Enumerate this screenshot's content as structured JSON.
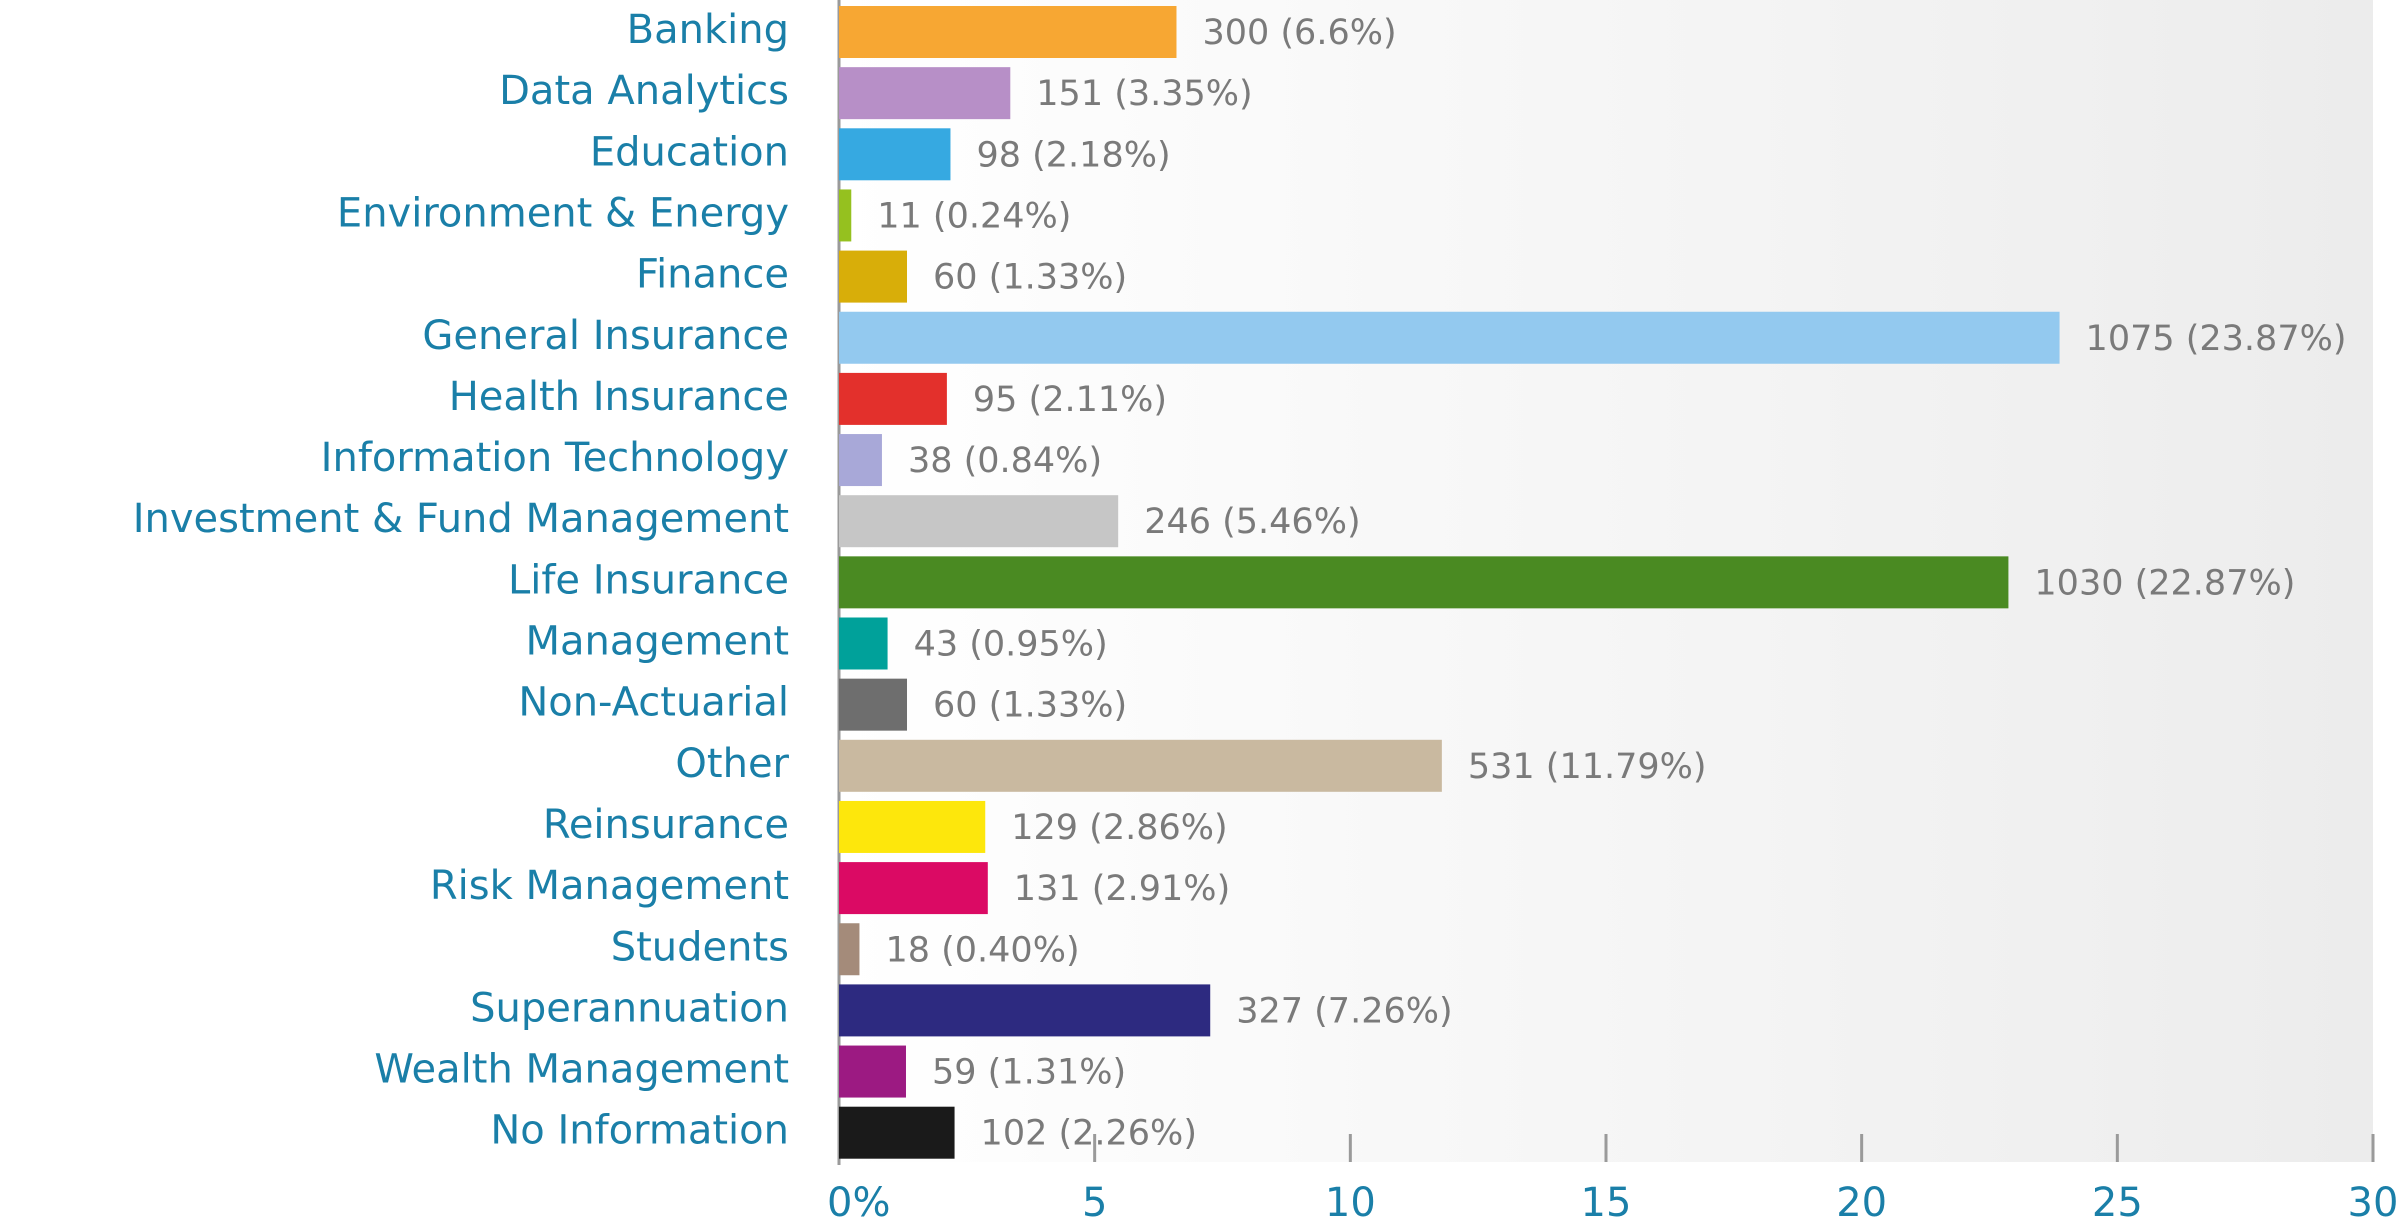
{
  "chart_data": {
    "type": "bar",
    "orientation": "horizontal",
    "categories": [
      "Banking",
      "Data Analytics",
      "Education",
      "Environment & Energy",
      "Finance",
      "General Insurance",
      "Health Insurance",
      "Information Technology",
      "Investment & Fund Management",
      "Life Insurance",
      "Management",
      "Non-Actuarial",
      "Other",
      "Reinsurance",
      "Risk Management",
      "Students",
      "Superannuation",
      "Wealth Management",
      "No Information"
    ],
    "values": [
      6.6,
      3.35,
      2.18,
      0.24,
      1.33,
      23.87,
      2.11,
      0.84,
      5.46,
      22.87,
      0.95,
      1.33,
      11.79,
      2.86,
      2.91,
      0.4,
      7.26,
      1.31,
      2.26
    ],
    "value_labels": [
      "300 (6.6%)",
      "151 (3.35%)",
      "98 (2.18%)",
      "11 (0.24%)",
      "60 (1.33%)",
      "1075 (23.87%)",
      "95 (2.11%)",
      "38 (0.84%)",
      "246 (5.46%)",
      "1030 (22.87%)",
      "43 (0.95%)",
      "60 (1.33%)",
      "531 (11.79%)",
      "129 (2.86%)",
      "131 (2.91%)",
      "18 (0.40%)",
      "327 (7.26%)",
      "59 (1.31%)",
      "102 (2.26%)"
    ],
    "colors": [
      "#f7a733",
      "#b78fc7",
      "#36a9e1",
      "#95c11f",
      "#d8ae09",
      "#93c9ef",
      "#e3302c",
      "#a8a8d8",
      "#c6c6c6",
      "#4a8a22",
      "#00a19a",
      "#6e6e6e",
      "#c9b9a0",
      "#fde70c",
      "#db0a64",
      "#a48b7a",
      "#2d2a80",
      "#9c1a82",
      "#1a1a1a"
    ],
    "xlim": [
      0,
      30
    ],
    "xticks": [
      {
        "value": 0,
        "label": "0%"
      },
      5,
      10,
      15,
      20,
      25,
      30
    ]
  }
}
